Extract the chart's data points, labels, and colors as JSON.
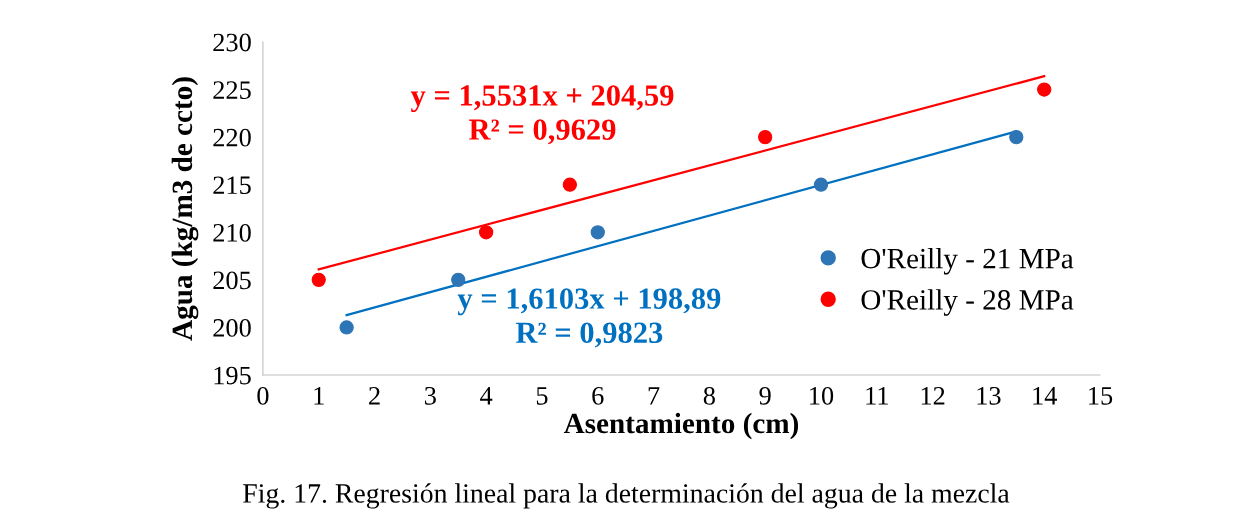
{
  "chart_data": {
    "type": "scatter",
    "xlabel": "Asentamiento (cm)",
    "ylabel": "Agua (kg/m3 de ccto)",
    "xlim": [
      0,
      15
    ],
    "xticks": [
      0,
      1,
      2,
      3,
      4,
      5,
      6,
      7,
      8,
      9,
      10,
      11,
      12,
      13,
      14,
      15
    ],
    "ylim": [
      195,
      230
    ],
    "yticks": [
      195,
      200,
      205,
      210,
      215,
      220,
      225,
      230
    ],
    "grid": false,
    "legend": "right",
    "series": [
      {
        "name": "O'Reilly - 21 MPa",
        "color": "#2e75b6",
        "x": [
          1.5,
          3.5,
          6,
          10,
          13.5
        ],
        "values": [
          200,
          205,
          210,
          215,
          220
        ],
        "marker": "circle"
      },
      {
        "name": "O'Reilly - 28 MPa",
        "color": "#ff0000",
        "x": [
          1,
          4,
          5.5,
          9,
          14
        ],
        "values": [
          205,
          210,
          215,
          220,
          225
        ],
        "marker": "circle"
      },
      {
        "type": "line",
        "color": "#0070c0",
        "x": [
          1.5,
          13.5
        ],
        "values": [
          201.3,
          220.6
        ]
      },
      {
        "type": "line",
        "color": "#ff0000",
        "x": [
          1,
          14
        ],
        "values": [
          206.1,
          226.4
        ]
      }
    ],
    "annotations": [
      "y = 1,6103x + 198,89\nR² = 0,9823",
      "y = 1,5531x + 204,59\nR² = 0,9629",
      "Fig. 17. Regresión lineal para la determinación del agua de la mezcla"
    ]
  }
}
